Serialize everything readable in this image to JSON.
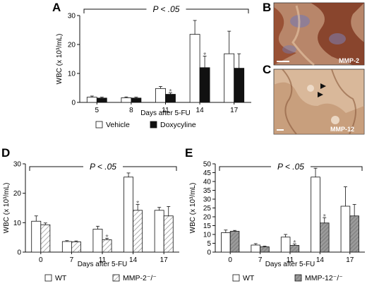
{
  "panels": {
    "A": "A",
    "B": "B",
    "C": "C",
    "D": "D",
    "E": "E"
  },
  "micrographs": {
    "B_label": "MMP-2",
    "C_label": "MMP-12"
  },
  "colors": {
    "white_bar": "#ffffff",
    "black_bar": "#111111",
    "hatch": "#9a9a9a",
    "gray_hatch_fill": "#8c8c8c",
    "micrograph_B_bg": "#b8866a",
    "micrograph_C_bg": "#d9b89a"
  },
  "chart_data": [
    {
      "id": "A",
      "type": "bar",
      "significance": "P < .05",
      "ylabel": "WBC (x 10³/mL)",
      "xlabel": "Days after 5-FU",
      "ylim": [
        0,
        30
      ],
      "yticks": [
        "0",
        "10",
        "20",
        "30"
      ],
      "categories": [
        "5",
        "8",
        "11",
        "14",
        "17"
      ],
      "series": [
        {
          "name": "Vehicle",
          "style": "white",
          "values": [
            1.8,
            1.6,
            4.8,
            23.5,
            16.8
          ],
          "errors": [
            0.4,
            0.3,
            0.7,
            4.8,
            7.8
          ]
        },
        {
          "name": "Doxycyline",
          "style": "black",
          "values": [
            1.5,
            1.5,
            2.8,
            12.0,
            11.8
          ],
          "errors": [
            0.3,
            0.3,
            0.5,
            4.0,
            5.0
          ]
        }
      ],
      "stars": [
        2,
        3
      ]
    },
    {
      "id": "D",
      "type": "bar",
      "significance": "P < .05",
      "ylabel": "WBC (x 10³/mL)",
      "xlabel": "Days after 5-FU",
      "ylim": [
        0,
        30
      ],
      "yticks": [
        "0",
        "10",
        "20",
        "30"
      ],
      "categories": [
        "0",
        "7",
        "11",
        "14",
        "17"
      ],
      "series": [
        {
          "name": "WT",
          "style": "white",
          "values": [
            10.5,
            3.6,
            7.8,
            25.5,
            14.2
          ],
          "errors": [
            1.8,
            0.3,
            1.0,
            1.4,
            1.0
          ]
        },
        {
          "name": "MMP-2⁻/⁻",
          "style": "hatch",
          "values": [
            9.3,
            3.5,
            4.2,
            14.2,
            12.3
          ],
          "errors": [
            0.6,
            0.3,
            0.5,
            2.0,
            3.2
          ]
        }
      ],
      "stars": [
        2,
        3
      ]
    },
    {
      "id": "E",
      "type": "bar",
      "significance": "P < .05",
      "ylabel": "WBC (x 10³/mL)",
      "xlabel": "Days after 5-FU",
      "ylim": [
        0,
        50
      ],
      "yticks": [
        "0",
        "5",
        "10",
        "15",
        "20",
        "25",
        "30",
        "35",
        "40",
        "45",
        "50"
      ],
      "categories": [
        "0",
        "7",
        "11",
        "14",
        "17"
      ],
      "series": [
        {
          "name": "WT",
          "style": "white",
          "values": [
            11.0,
            4.0,
            8.5,
            42.5,
            26.0
          ],
          "errors": [
            1.5,
            0.8,
            1.5,
            5.0,
            11.0
          ]
        },
        {
          "name": "MMP-12⁻/⁻",
          "style": "gray",
          "values": [
            11.8,
            3.0,
            3.8,
            16.5,
            20.5
          ],
          "errors": [
            0.5,
            0.4,
            0.8,
            3.0,
            6.5
          ]
        }
      ],
      "stars": [
        2,
        3
      ]
    }
  ]
}
